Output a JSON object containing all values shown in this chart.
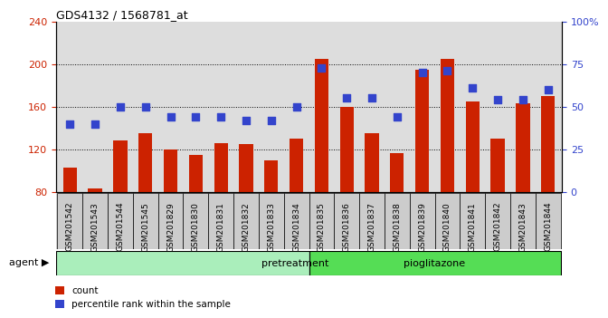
{
  "title": "GDS4132 / 1568781_at",
  "samples": [
    "GSM201542",
    "GSM201543",
    "GSM201544",
    "GSM201545",
    "GSM201829",
    "GSM201830",
    "GSM201831",
    "GSM201832",
    "GSM201833",
    "GSM201834",
    "GSM201835",
    "GSM201836",
    "GSM201837",
    "GSM201838",
    "GSM201839",
    "GSM201840",
    "GSM201841",
    "GSM201842",
    "GSM201843",
    "GSM201844"
  ],
  "counts": [
    103,
    83,
    128,
    135,
    120,
    115,
    126,
    125,
    110,
    130,
    205,
    160,
    135,
    116,
    195,
    205,
    165,
    130,
    163,
    170
  ],
  "percentiles": [
    40,
    40,
    50,
    50,
    44,
    44,
    44,
    42,
    42,
    50,
    73,
    55,
    55,
    44,
    70,
    71,
    61,
    54,
    54,
    60
  ],
  "bar_color": "#cc2200",
  "dot_color": "#3344cc",
  "pretreatment_count": 10,
  "ylim_left": [
    80,
    240
  ],
  "ylim_right": [
    0,
    100
  ],
  "yticks_left": [
    80,
    120,
    160,
    200,
    240
  ],
  "yticks_right": [
    0,
    25,
    50,
    75,
    100
  ],
  "ytick_right_labels": [
    "0",
    "25",
    "50",
    "75",
    "100%"
  ],
  "grid_values": [
    120,
    160,
    200
  ],
  "plot_bg_color": "#dddddd",
  "xtick_bg_color": "#cccccc",
  "pretreatment_color": "#aaeebb",
  "pioglitazone_color": "#55dd55",
  "bar_bottom": 80
}
